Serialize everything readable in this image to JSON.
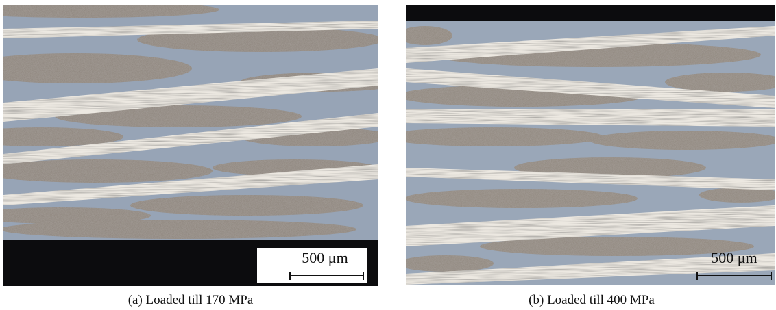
{
  "panels": [
    {
      "scale_bar": "500 μm",
      "caption": "(a) Loaded till 170 MPa"
    },
    {
      "scale_bar": "500 μm",
      "caption": "(b) Loaded till 400 MPa"
    }
  ]
}
